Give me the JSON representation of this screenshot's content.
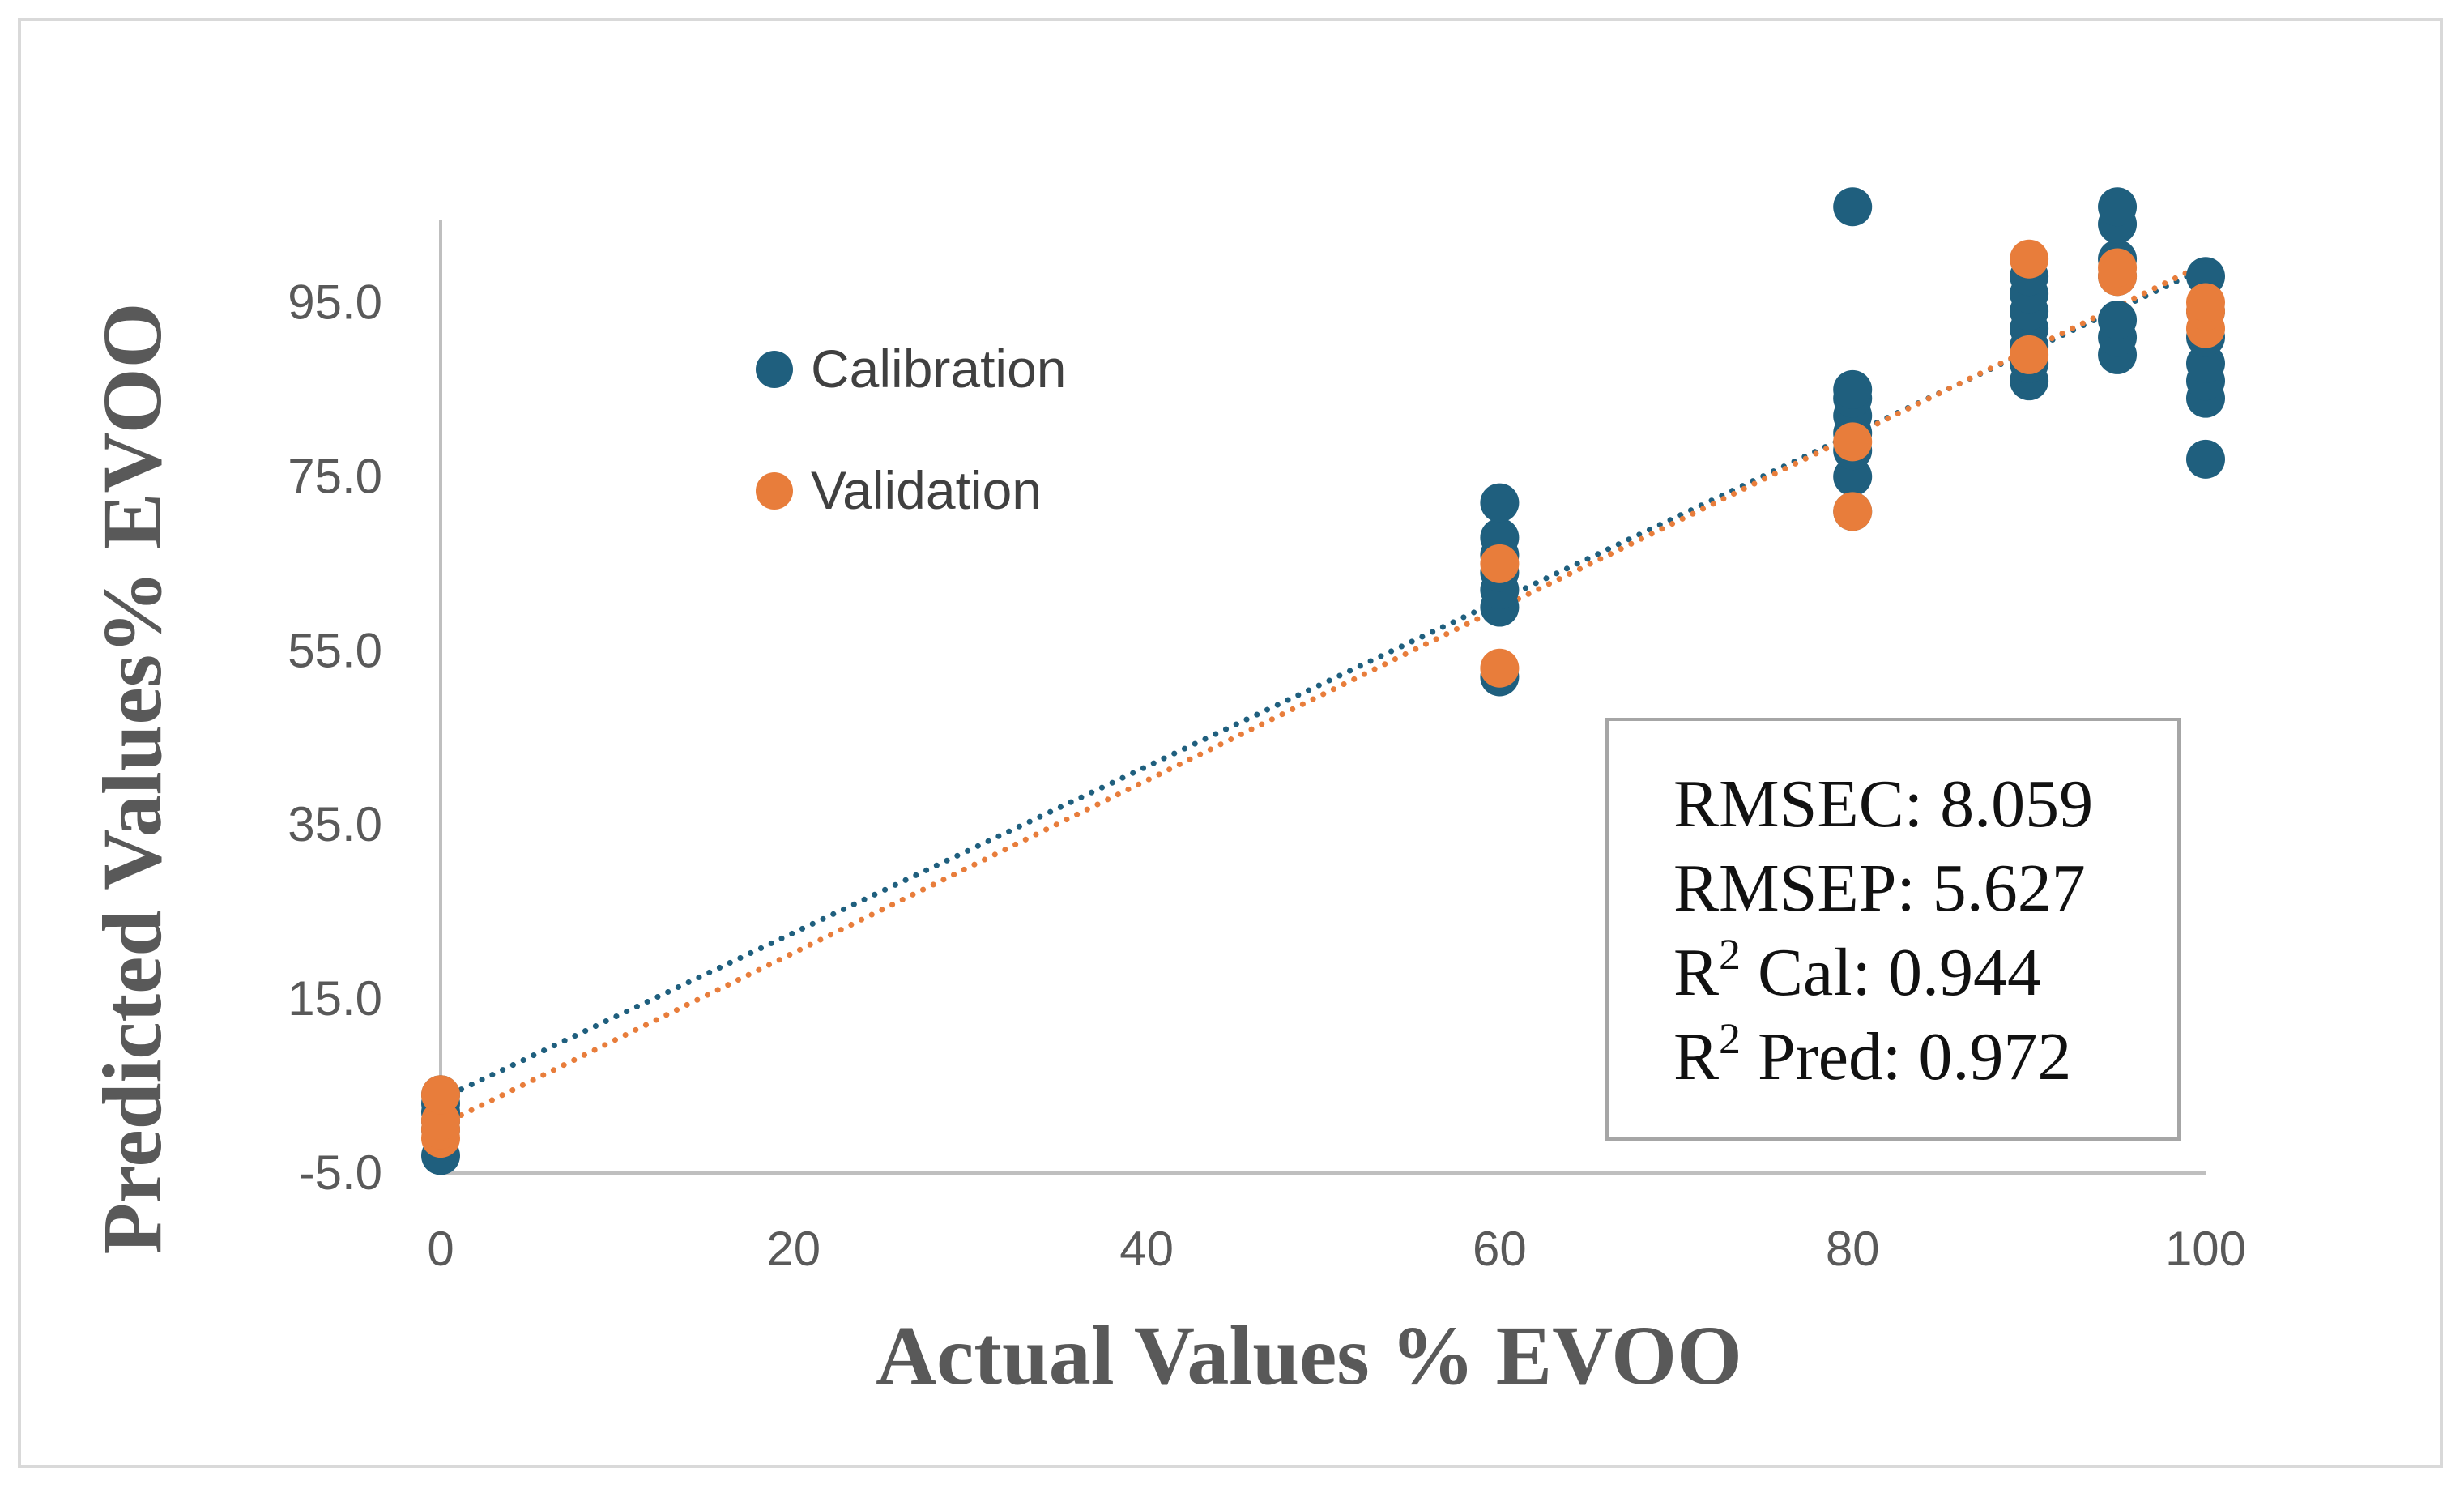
{
  "chart_data": {
    "type": "scatter",
    "xlabel": "Actual Values % EVOO",
    "ylabel": "Predicted Values% EVOO",
    "xlim": [
      0,
      100
    ],
    "ylim": [
      -5,
      105
    ],
    "x_ticks": [
      0,
      20,
      40,
      60,
      80,
      100
    ],
    "y_ticks": [
      -5,
      15,
      35,
      55,
      75,
      95
    ],
    "x_tick_labels": [
      "0",
      "20",
      "40",
      "60",
      "80",
      "100"
    ],
    "y_tick_labels": [
      "-5.0",
      "15.0",
      "35.0",
      "55.0",
      "75.0",
      "95.0"
    ],
    "legend_position": "top-left",
    "series": [
      {
        "name": "Calibration",
        "color": "#1f5f7e",
        "points": [
          [
            0,
            -3
          ],
          [
            0,
            0
          ],
          [
            0,
            1
          ],
          [
            0,
            2
          ],
          [
            0,
            3
          ],
          [
            0,
            4
          ],
          [
            60,
            52
          ],
          [
            60,
            60
          ],
          [
            60,
            62
          ],
          [
            60,
            64
          ],
          [
            60,
            66
          ],
          [
            60,
            68
          ],
          [
            60,
            72
          ],
          [
            80,
            71
          ],
          [
            80,
            75
          ],
          [
            80,
            78
          ],
          [
            80,
            80
          ],
          [
            80,
            82
          ],
          [
            80,
            84
          ],
          [
            80,
            85
          ],
          [
            80,
            106
          ],
          [
            90,
            86
          ],
          [
            90,
            88
          ],
          [
            90,
            90
          ],
          [
            90,
            92
          ],
          [
            90,
            94
          ],
          [
            90,
            96
          ],
          [
            90,
            98
          ],
          [
            95,
            89
          ],
          [
            95,
            91
          ],
          [
            95,
            93
          ],
          [
            95,
            98
          ],
          [
            95,
            100
          ],
          [
            95,
            104
          ],
          [
            95,
            106
          ],
          [
            100,
            77
          ],
          [
            100,
            84
          ],
          [
            100,
            86
          ],
          [
            100,
            88
          ],
          [
            100,
            91
          ],
          [
            100,
            94
          ],
          [
            100,
            98
          ]
        ],
        "trendline": [
          [
            0,
            3.5
          ],
          [
            100,
            99
          ]
        ]
      },
      {
        "name": "Validation",
        "color": "#e87d3b",
        "points": [
          [
            0,
            -1
          ],
          [
            0,
            0
          ],
          [
            0,
            1
          ],
          [
            0,
            4
          ],
          [
            60,
            53
          ],
          [
            60,
            65
          ],
          [
            80,
            71
          ],
          [
            80,
            79
          ],
          [
            90,
            89
          ],
          [
            90,
            100
          ],
          [
            95,
            98
          ],
          [
            95,
            99
          ],
          [
            100,
            92
          ],
          [
            100,
            94
          ],
          [
            100,
            95
          ]
        ],
        "trendline": [
          [
            0,
            0.5
          ],
          [
            100,
            99.5
          ]
        ]
      }
    ],
    "annotation": {
      "lines": [
        {
          "prefix": "RMSEC: 8.059"
        },
        {
          "prefix": "RMSEP: 5.627"
        },
        {
          "prefix": "R",
          "sup": "2",
          "suffix": " Cal: 0.944"
        },
        {
          "prefix": "R",
          "sup": "2",
          "suffix": " Pred: 0.972"
        }
      ]
    }
  }
}
